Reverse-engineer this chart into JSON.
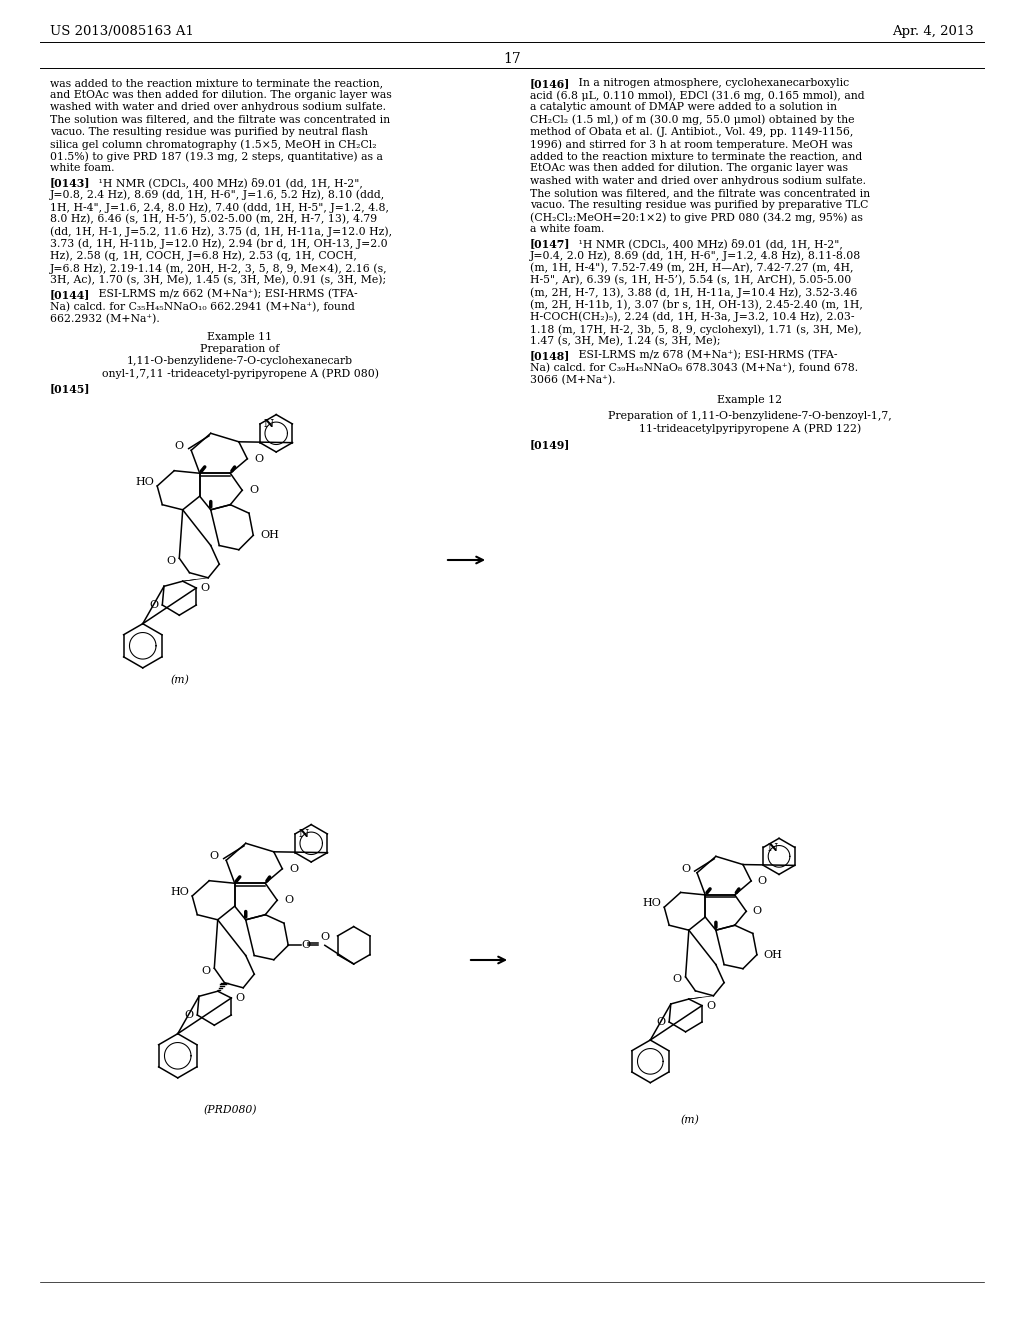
{
  "page_header_left": "US 2013/0085163 A1",
  "page_header_right": "Apr. 4, 2013",
  "page_number": "17",
  "background_color": "#ffffff",
  "text_color": "#000000",
  "left_col_texts_top": [
    "was added to the reaction mixture to terminate the reaction,",
    "and EtOAc was then added for dilution. The organic layer was",
    "washed with water and dried over anhydrous sodium sulfate.",
    "The solution was filtered, and the filtrate was concentrated in",
    "vacuo. The resulting residue was purified by neutral flash",
    "silica gel column chromatography (1.5×5, MeOH in CH₂Cl₂",
    "01.5%) to give PRD 187 (19.3 mg, 2 steps, quantitative) as a",
    "white foam."
  ],
  "para_0143_first": "   ¹H NMR (CDCl₃, 400 MHz) δ9.01 (dd, 1H, H-2\",",
  "para_0143_lines": [
    "J=0.8, 2.4 Hz), 8.69 (dd, 1H, H-6\", J=1.6, 5.2 Hz), 8.10 (ddd,",
    "1H, H-4\", J=1.6, 2.4, 8.0 Hz), 7.40 (ddd, 1H, H-5\", J=1.2, 4.8,",
    "8.0 Hz), 6.46 (s, 1H, H-5’), 5.02-5.00 (m, 2H, H-7, 13), 4.79",
    "(dd, 1H, H-1, J=5.2, 11.6 Hz), 3.75 (d, 1H, H-11a, J=12.0 Hz),",
    "3.73 (d, 1H, H-11b, J=12.0 Hz), 2.94 (br d, 1H, OH-13, J=2.0",
    "Hz), 2.58 (q, 1H, COCH, J=6.8 Hz), 2.53 (q, 1H, COCH,",
    "J=6.8 Hz), 2.19-1.14 (m, 20H, H-2, 3, 5, 8, 9, Me×4), 2.16 (s,",
    "3H, Ac), 1.70 (s, 3H, Me), 1.45 (s, 3H, Me), 0.91 (s, 3H, Me);"
  ],
  "para_0144_first": "   ESI-LRMS m/z 662 (M+Na⁺); ESI-HRMS (TFA-",
  "para_0144_lines": [
    "Na) calcd. for C₃₅H₄₅NNaO₁₀ 662.2941 (M+Na⁺), found",
    "662.2932 (M+Na⁺)."
  ],
  "example11_lines": [
    "Example 11",
    "Preparation of",
    "1,11-O-benzylidene-7-O-cyclohexanecarb",
    "onyl-1,7,11 -trideacetyl-pyripyropene A (PRD 080)"
  ],
  "right_col_texts_top": [
    "acid (6.8 μL, 0.110 mmol), EDCl (31.6 mg, 0.165 mmol), and",
    "a catalytic amount of DMAP were added to a solution in",
    "CH₂Cl₂ (1.5 ml,) of m (30.0 mg, 55.0 μmol) obtained by the",
    "method of Obata et al. (J. Antibiot., Vol. 49, pp. 1149-1156,",
    "1996) and stirred for 3 h at room temperature. MeOH was",
    "added to the reaction mixture to terminate the reaction, and",
    "EtOAc was then added for dilution. The organic layer was",
    "washed with water and dried over anhydrous sodium sulfate.",
    "The solution was filtered, and the filtrate was concentrated in",
    "vacuo. The resulting residue was purified by preparative TLC",
    "(CH₂Cl₂:MeOH=20:1×2) to give PRD 080 (34.2 mg, 95%) as",
    "a white foam."
  ],
  "para_0147_first": "   ¹H NMR (CDCl₃, 400 MHz) δ9.01 (dd, 1H, H-2\",",
  "para_0147_lines": [
    "J=0.4, 2.0 Hz), 8.69 (dd, 1H, H-6\", J=1.2, 4.8 Hz), 8.11-8.08",
    "(m, 1H, H-4\"), 7.52-7.49 (m, 2H, H—Ar), 7.42-7.27 (m, 4H,",
    "H-5\", Ar), 6.39 (s, 1H, H-5’), 5.54 (s, 1H, ArCH), 5.05-5.00",
    "(m, 2H, H-7, 13), 3.88 (d, 1H, H-11a, J=10.4 Hz), 3.52-3.46",
    "(m, 2H, H-11b, 1), 3.07 (br s, 1H, OH-13), 2.45-2.40 (m, 1H,",
    "H-COCH(CH₂)₅), 2.24 (dd, 1H, H-3a, J=3.2, 10.4 Hz), 2.03-",
    "1.18 (m, 17H, H-2, 3b, 5, 8, 9, cyclohexyl), 1.71 (s, 3H, Me),",
    "1.47 (s, 3H, Me), 1.24 (s, 3H, Me);"
  ],
  "para_0148_first": "   ESI-LRMS m/z 678 (M+Na⁺); ESI-HRMS (TFA-",
  "para_0148_lines": [
    "Na) calcd. for C₃₉H₄₅NNaO₈ 678.3043 (M+Na⁺), found 678.",
    "3066 (M+Na⁺)."
  ],
  "example12_lines": [
    "Example 12",
    "Preparation of 1,11-O-benzylidene-7-O-benzoyl-1,7,",
    "11-trideacetylpyripyropene A (PRD 122)"
  ]
}
